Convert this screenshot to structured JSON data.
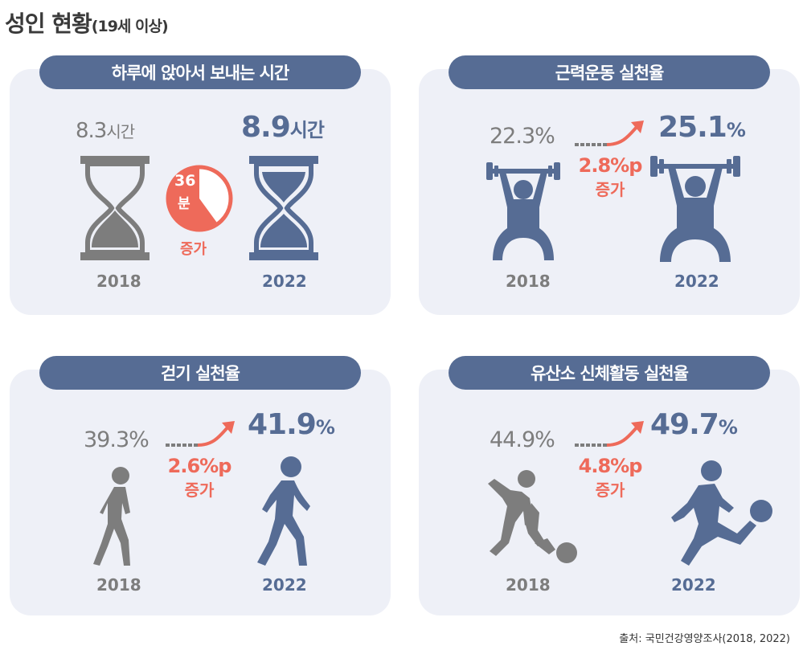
{
  "header": {
    "title": "성인 현황",
    "subtitle": "(19세 이상)"
  },
  "colors": {
    "gray": "#7d7d7d",
    "blue": "#566c94",
    "accent": "#ee6a5a",
    "panel": "#eef0f7"
  },
  "panels": [
    {
      "title": "하루에 앉아서 보내는 시간",
      "before": {
        "value": "8.3",
        "unit": "시간",
        "year": "2018"
      },
      "after": {
        "value": "8.9",
        "unit": "시간",
        "year": "2022"
      },
      "badge": {
        "number": "36",
        "unit": "분",
        "label": "증가",
        "fill_fraction": 0.6
      },
      "icon": "hourglass-icon"
    },
    {
      "title": "근력운동 실천율",
      "before": {
        "value": "22.3",
        "unit": "%",
        "year": "2018"
      },
      "after": {
        "value": "25.1",
        "unit": "%",
        "year": "2022"
      },
      "change": {
        "amount": "2.8%p",
        "label": "증가"
      },
      "icon": "weightlifter-icon"
    },
    {
      "title": "걷기 실천율",
      "before": {
        "value": "39.3",
        "unit": "%",
        "year": "2018"
      },
      "after": {
        "value": "41.9",
        "unit": "%",
        "year": "2022"
      },
      "change": {
        "amount": "2.6%p",
        "label": "증가"
      },
      "icon": "walking-person-icon"
    },
    {
      "title": "유산소 신체활동 실천율",
      "before": {
        "value": "44.9",
        "unit": "%",
        "year": "2018"
      },
      "after": {
        "value": "49.7",
        "unit": "%",
        "year": "2022"
      },
      "change": {
        "amount": "4.8%p",
        "label": "증가"
      },
      "icon": "soccer-player-icon"
    }
  ],
  "source": "출처: 국민건강영양조사(2018, 2022)"
}
